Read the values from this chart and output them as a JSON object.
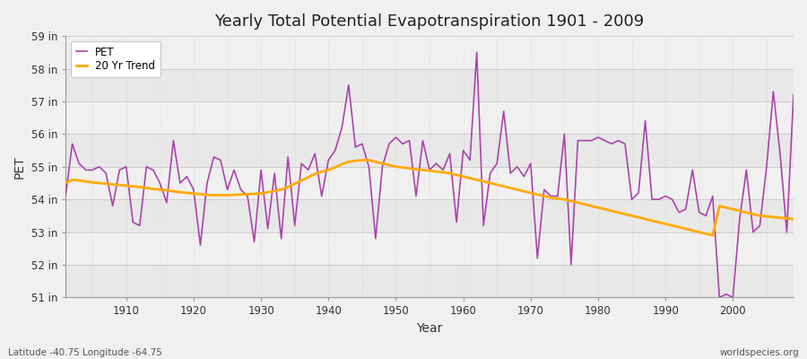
{
  "title": "Yearly Total Potential Evapotranspiration 1901 - 2009",
  "xlabel": "Year",
  "ylabel": "PET",
  "footnote_left": "Latitude -40.75 Longitude -64.75",
  "footnote_right": "worldspecies.org",
  "bg_color": "#f0f0f0",
  "plot_bg_color": "#f5f5f5",
  "pet_color": "#aa44aa",
  "trend_color": "#ffaa00",
  "ylim": [
    51,
    59
  ],
  "yticks": [
    51,
    52,
    53,
    54,
    55,
    56,
    57,
    58,
    59
  ],
  "ytick_labels": [
    "51 in",
    "52 in",
    "53 in",
    "54 in",
    "55 in",
    "56 in",
    "57 in",
    "58 in",
    "59 in"
  ],
  "years": [
    1901,
    1902,
    1903,
    1904,
    1905,
    1906,
    1907,
    1908,
    1909,
    1910,
    1911,
    1912,
    1913,
    1914,
    1915,
    1916,
    1917,
    1918,
    1919,
    1920,
    1921,
    1922,
    1923,
    1924,
    1925,
    1926,
    1927,
    1928,
    1929,
    1930,
    1931,
    1932,
    1933,
    1934,
    1935,
    1936,
    1937,
    1938,
    1939,
    1940,
    1941,
    1942,
    1943,
    1944,
    1945,
    1946,
    1947,
    1948,
    1949,
    1950,
    1951,
    1952,
    1953,
    1954,
    1955,
    1956,
    1957,
    1958,
    1959,
    1960,
    1961,
    1962,
    1963,
    1964,
    1965,
    1966,
    1967,
    1968,
    1969,
    1970,
    1971,
    1972,
    1973,
    1974,
    1975,
    1976,
    1977,
    1978,
    1979,
    1980,
    1981,
    1982,
    1983,
    1984,
    1985,
    1986,
    1987,
    1988,
    1989,
    1990,
    1991,
    1992,
    1993,
    1994,
    1995,
    1996,
    1997,
    1998,
    1999,
    2000,
    2001,
    2002,
    2003,
    2004,
    2005,
    2006,
    2007,
    2008,
    2009
  ],
  "pet_values": [
    54.1,
    55.7,
    55.1,
    54.9,
    54.9,
    55.0,
    54.8,
    53.8,
    54.9,
    55.0,
    53.3,
    53.2,
    55.0,
    54.9,
    54.5,
    53.9,
    55.8,
    54.5,
    54.7,
    54.3,
    52.6,
    54.5,
    55.3,
    55.2,
    54.3,
    54.9,
    54.3,
    54.1,
    52.7,
    54.9,
    53.1,
    54.8,
    52.8,
    55.3,
    53.2,
    55.1,
    54.9,
    55.4,
    54.1,
    55.2,
    55.5,
    56.2,
    57.5,
    55.6,
    55.7,
    55.0,
    52.8,
    55.0,
    55.7,
    55.9,
    55.7,
    55.8,
    54.1,
    55.8,
    54.9,
    55.1,
    54.9,
    55.4,
    53.3,
    55.5,
    55.2,
    58.5,
    53.2,
    54.8,
    55.1,
    56.7,
    54.8,
    55.0,
    54.7,
    55.1,
    52.2,
    54.3,
    54.1,
    54.1,
    56.0,
    52.0,
    55.8,
    55.8,
    55.8,
    55.9,
    55.8,
    55.7,
    55.8,
    55.7,
    54.0,
    54.2,
    56.4,
    54.0,
    54.0,
    54.1,
    54.0,
    53.6,
    53.7,
    54.9,
    53.6,
    53.5,
    54.1,
    51.0,
    51.1,
    51.0,
    53.4,
    54.9,
    53.0,
    53.2,
    55.0,
    57.3,
    55.4,
    53.0,
    57.2
  ],
  "trend_values": [
    54.5,
    54.6,
    54.58,
    54.55,
    54.52,
    54.5,
    54.48,
    54.46,
    54.44,
    54.42,
    54.4,
    54.38,
    54.35,
    54.32,
    54.3,
    54.28,
    54.25,
    54.22,
    54.2,
    54.18,
    54.16,
    54.14,
    54.13,
    54.13,
    54.13,
    54.14,
    54.15,
    54.16,
    54.17,
    54.18,
    54.22,
    54.26,
    54.3,
    54.38,
    54.48,
    54.58,
    54.68,
    54.78,
    54.85,
    54.9,
    54.98,
    55.08,
    55.15,
    55.18,
    55.2,
    55.2,
    55.15,
    55.1,
    55.05,
    55.0,
    54.98,
    54.95,
    54.92,
    54.9,
    54.88,
    54.85,
    54.83,
    54.8,
    54.75,
    54.7,
    54.65,
    54.6,
    54.55,
    54.5,
    54.45,
    54.4,
    54.35,
    54.3,
    54.25,
    54.2,
    54.15,
    54.1,
    54.05,
    54.02,
    54.0,
    53.95,
    53.9,
    53.85,
    53.8,
    53.75,
    53.7,
    53.65,
    53.6,
    53.55,
    53.5,
    53.45,
    53.4,
    53.35,
    53.3,
    53.25,
    53.2,
    53.15,
    53.1,
    53.05,
    53.0,
    52.95,
    52.9,
    53.8,
    53.75,
    53.7,
    53.65,
    53.6,
    53.55,
    53.5,
    53.48,
    53.46,
    53.44,
    53.42,
    53.4
  ],
  "xticks": [
    1910,
    1920,
    1930,
    1940,
    1950,
    1960,
    1970,
    1980,
    1990,
    2000
  ],
  "band_colors": [
    "#e8e8e8",
    "#f0f0f0"
  ]
}
